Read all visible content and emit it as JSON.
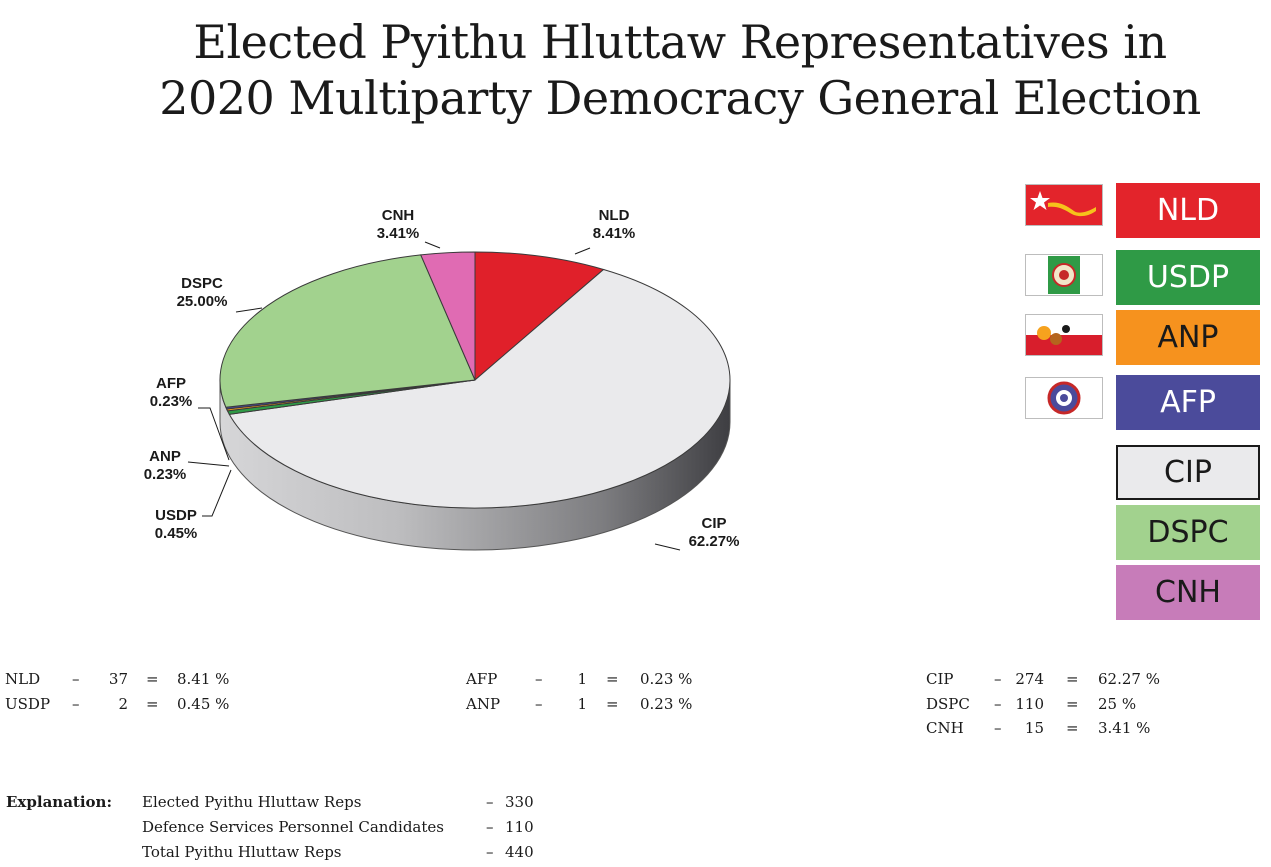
{
  "title_line1": "Elected Pyithu Hluttaw Representatives in",
  "title_line2": "2020 Multiparty Democracy General Election",
  "chart_data": {
    "type": "pie",
    "slices": [
      {
        "name": "NLD",
        "label": "NLD",
        "value": 8.41,
        "pct_label": "8.41%",
        "color": "#e0202a"
      },
      {
        "name": "CIP",
        "label": "CIP",
        "value": 62.27,
        "pct_label": "62.27%",
        "color": "#eaeaec"
      },
      {
        "name": "USDP",
        "label": "USDP",
        "value": 0.45,
        "pct_label": "0.45%",
        "color": "#2f9a46"
      },
      {
        "name": "ANP",
        "label": "ANP",
        "value": 0.23,
        "pct_label": "0.23%",
        "color": "#f29a1f"
      },
      {
        "name": "AFP",
        "label": "AFP",
        "value": 0.23,
        "pct_label": "0.23%",
        "color": "#4a4a9a"
      },
      {
        "name": "DSPC",
        "label": "DSPC",
        "value": 25.0,
        "pct_label": "25.00%",
        "color": "#a2d28e"
      },
      {
        "name": "CNH",
        "label": "CNH",
        "value": 3.41,
        "pct_label": "3.41%",
        "color": "#e06bb3"
      }
    ],
    "legend_placement": "right"
  },
  "legend": [
    {
      "name": "NLD",
      "color": "#e3242b",
      "text_color": "#ffffff",
      "flag": "nld-flag-icon"
    },
    {
      "name": "USDP",
      "color": "#2f9a46",
      "text_color": "#ffffff",
      "flag": "usdp-flag-icon"
    },
    {
      "name": "ANP",
      "color": "#f6921e",
      "text_color": "#1a1a1a",
      "flag": "anp-flag-icon"
    },
    {
      "name": "AFP",
      "color": "#4b4b9b",
      "text_color": "#ffffff",
      "flag": "afp-flag-icon"
    },
    {
      "name": "CIP",
      "color": "#eaeaec",
      "text_color": "#1a1a1a",
      "flag": ""
    },
    {
      "name": "DSPC",
      "color": "#a2d28e",
      "text_color": "#1a1a1a",
      "flag": ""
    },
    {
      "name": "CNH",
      "color": "#c77cb9",
      "text_color": "#1a1a1a",
      "flag": ""
    }
  ],
  "stats": {
    "col1": [
      {
        "party": "NLD",
        "dash": "–",
        "count": "37",
        "eq": "=",
        "pct": "8.41 %"
      },
      {
        "party": "USDP",
        "dash": "–",
        "count": "2",
        "eq": "=",
        "pct": "0.45 %"
      }
    ],
    "col2": [
      {
        "party": "AFP",
        "dash": "–",
        "count": "1",
        "eq": "=",
        "pct": "0.23 %"
      },
      {
        "party": "ANP",
        "dash": "–",
        "count": "1",
        "eq": "=",
        "pct": "0.23 %"
      }
    ],
    "col3": [
      {
        "party": "CIP",
        "dash": "–",
        "count": "274",
        "eq": "=",
        "pct": "62.27 %"
      },
      {
        "party": "DSPC",
        "dash": "–",
        "count": "110",
        "eq": "=",
        "pct": "25 %"
      },
      {
        "party": "CNH",
        "dash": "–",
        "count": "15",
        "eq": "=",
        "pct": "3.41 %"
      }
    ]
  },
  "explanation": {
    "heading": "Explanation:",
    "rows": [
      {
        "label": "Elected Pyithu Hluttaw Reps",
        "dash": "–",
        "value": "330"
      },
      {
        "label": "Defence Services Personnel Candidates",
        "dash": "–",
        "value": "110"
      },
      {
        "label": "Total Pyithu Hluttaw Reps",
        "dash": "–",
        "value": "440"
      }
    ]
  }
}
